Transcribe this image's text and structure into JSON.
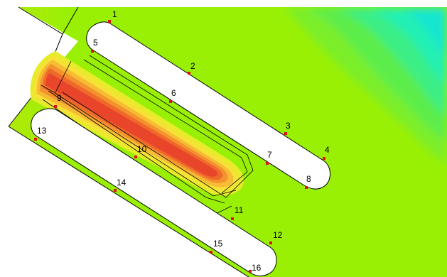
{
  "colors": {
    "background": "#ffffff",
    "field_base": "#99f005",
    "field_mid": "#66ee44",
    "field_far": "#2ef2a6",
    "field_edge": "#16e6c6",
    "hot_outer": "#f2e233",
    "hot_mid1": "#f7b733",
    "hot_mid2": "#f48a2d",
    "hot_core": "#ec4a2a",
    "hot_center": "#e83a22",
    "slot_fill": "#ffffff",
    "outline": "#000000",
    "marker": "#e01010"
  },
  "points": [
    {
      "label": "1"
    },
    {
      "label": "2"
    },
    {
      "label": "3"
    },
    {
      "label": "4"
    },
    {
      "label": "5"
    },
    {
      "label": "6"
    },
    {
      "label": "7"
    },
    {
      "label": "8"
    },
    {
      "label": "9"
    },
    {
      "label": "10"
    },
    {
      "label": "11"
    },
    {
      "label": "12"
    },
    {
      "label": "13"
    },
    {
      "label": "14"
    },
    {
      "label": "15"
    },
    {
      "label": "16"
    }
  ]
}
